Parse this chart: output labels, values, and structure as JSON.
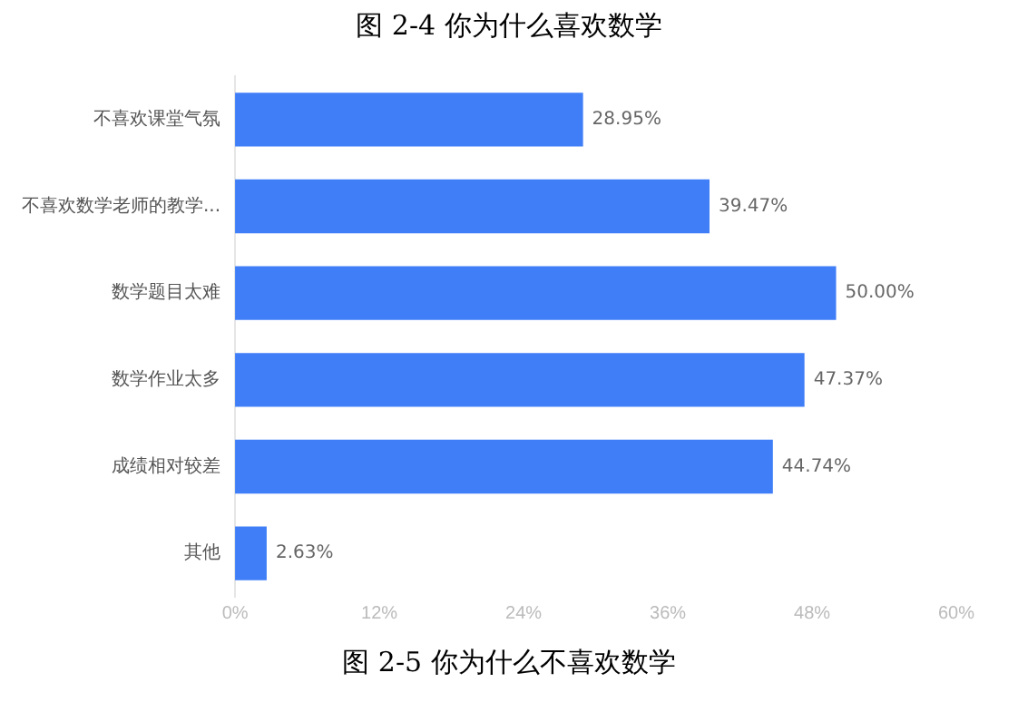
{
  "chart_data": {
    "type": "bar",
    "orientation": "horizontal",
    "title": "图 2-5  你为什么不喜欢数学",
    "annotations": [
      "图 2-4  你为什么喜欢数学"
    ],
    "categories": [
      "不喜欢课堂气氛",
      "不喜欢数学老师的教学...",
      "数学题目太难",
      "数学作业太多",
      "成绩相对较差",
      "其他"
    ],
    "values": [
      28.95,
      39.47,
      50.0,
      47.37,
      44.74,
      2.63
    ],
    "value_labels": [
      "28.95%",
      "39.47%",
      "50.00%",
      "47.37%",
      "44.74%",
      "2.63%"
    ],
    "color": "#3f7ef7",
    "xlim": [
      0,
      60
    ],
    "xticks": [
      {
        "value": 0,
        "label": "0%"
      },
      {
        "value": 12,
        "label": "12%"
      },
      {
        "value": 24,
        "label": "24%"
      },
      {
        "value": 36,
        "label": "36%"
      },
      {
        "value": 48,
        "label": "48%"
      },
      {
        "value": 60,
        "label": "60%"
      }
    ],
    "grid": false,
    "legend": false
  }
}
